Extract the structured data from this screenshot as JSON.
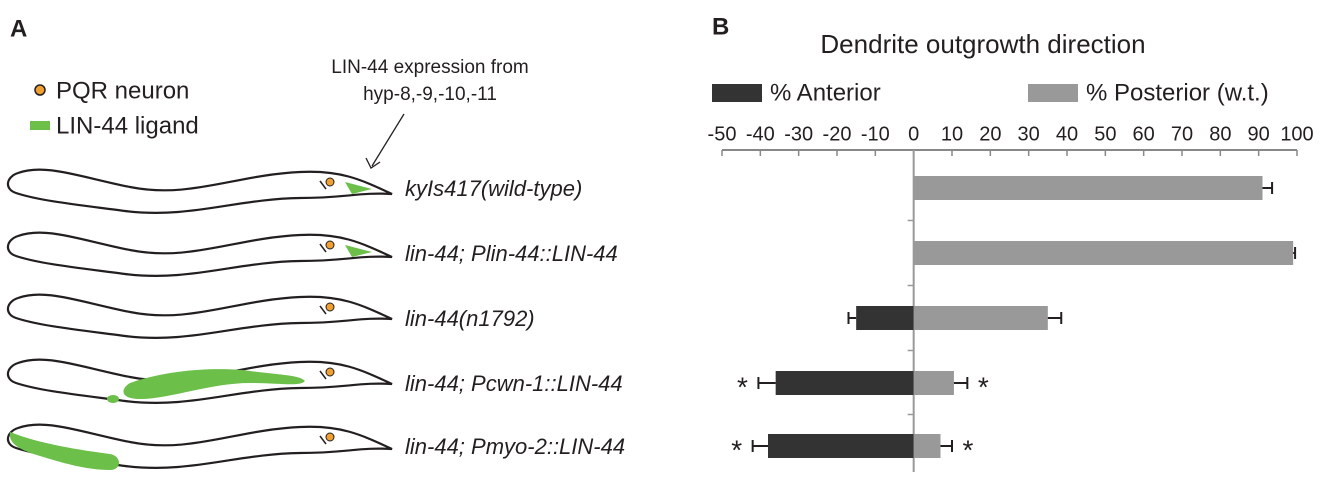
{
  "panel_a": {
    "label": "A",
    "legend": [
      "PQR neuron",
      "LIN-44 ligand"
    ],
    "annotation": [
      "LIN-44 expression from",
      "hyp-8,-9,-10,-11"
    ]
  },
  "chart_data": {
    "type": "hbar",
    "panel_label": "B",
    "title": "Dendrite outgrowth direction",
    "categories": [
      "kyIs417(wild-type)",
      "lin-44; Plin-44::LIN-44",
      "lin-44(n1792)",
      "lin-44; Pcwn-1::LIN-44",
      "lin-44; Pmyo-2::LIN-44"
    ],
    "series": [
      {
        "name": "% Anterior",
        "color": "#333333",
        "values": [
          null,
          null,
          -15,
          -36,
          -38
        ],
        "errors": [
          null,
          null,
          2,
          4.5,
          4
        ],
        "significance": [
          null,
          null,
          null,
          "*",
          "*"
        ]
      },
      {
        "name": "% Posterior (w.t.)",
        "color": "#999999",
        "values": [
          91,
          99,
          35,
          10.5,
          7
        ],
        "errors": [
          2.5,
          0.5,
          3.5,
          3.5,
          3
        ],
        "significance": [
          null,
          null,
          null,
          "*",
          "*"
        ]
      }
    ],
    "xlim": [
      -50,
      100
    ],
    "xticks": [
      -50,
      -40,
      -30,
      -20,
      -10,
      0,
      10,
      20,
      30,
      40,
      50,
      60,
      70,
      80,
      90,
      100
    ]
  }
}
